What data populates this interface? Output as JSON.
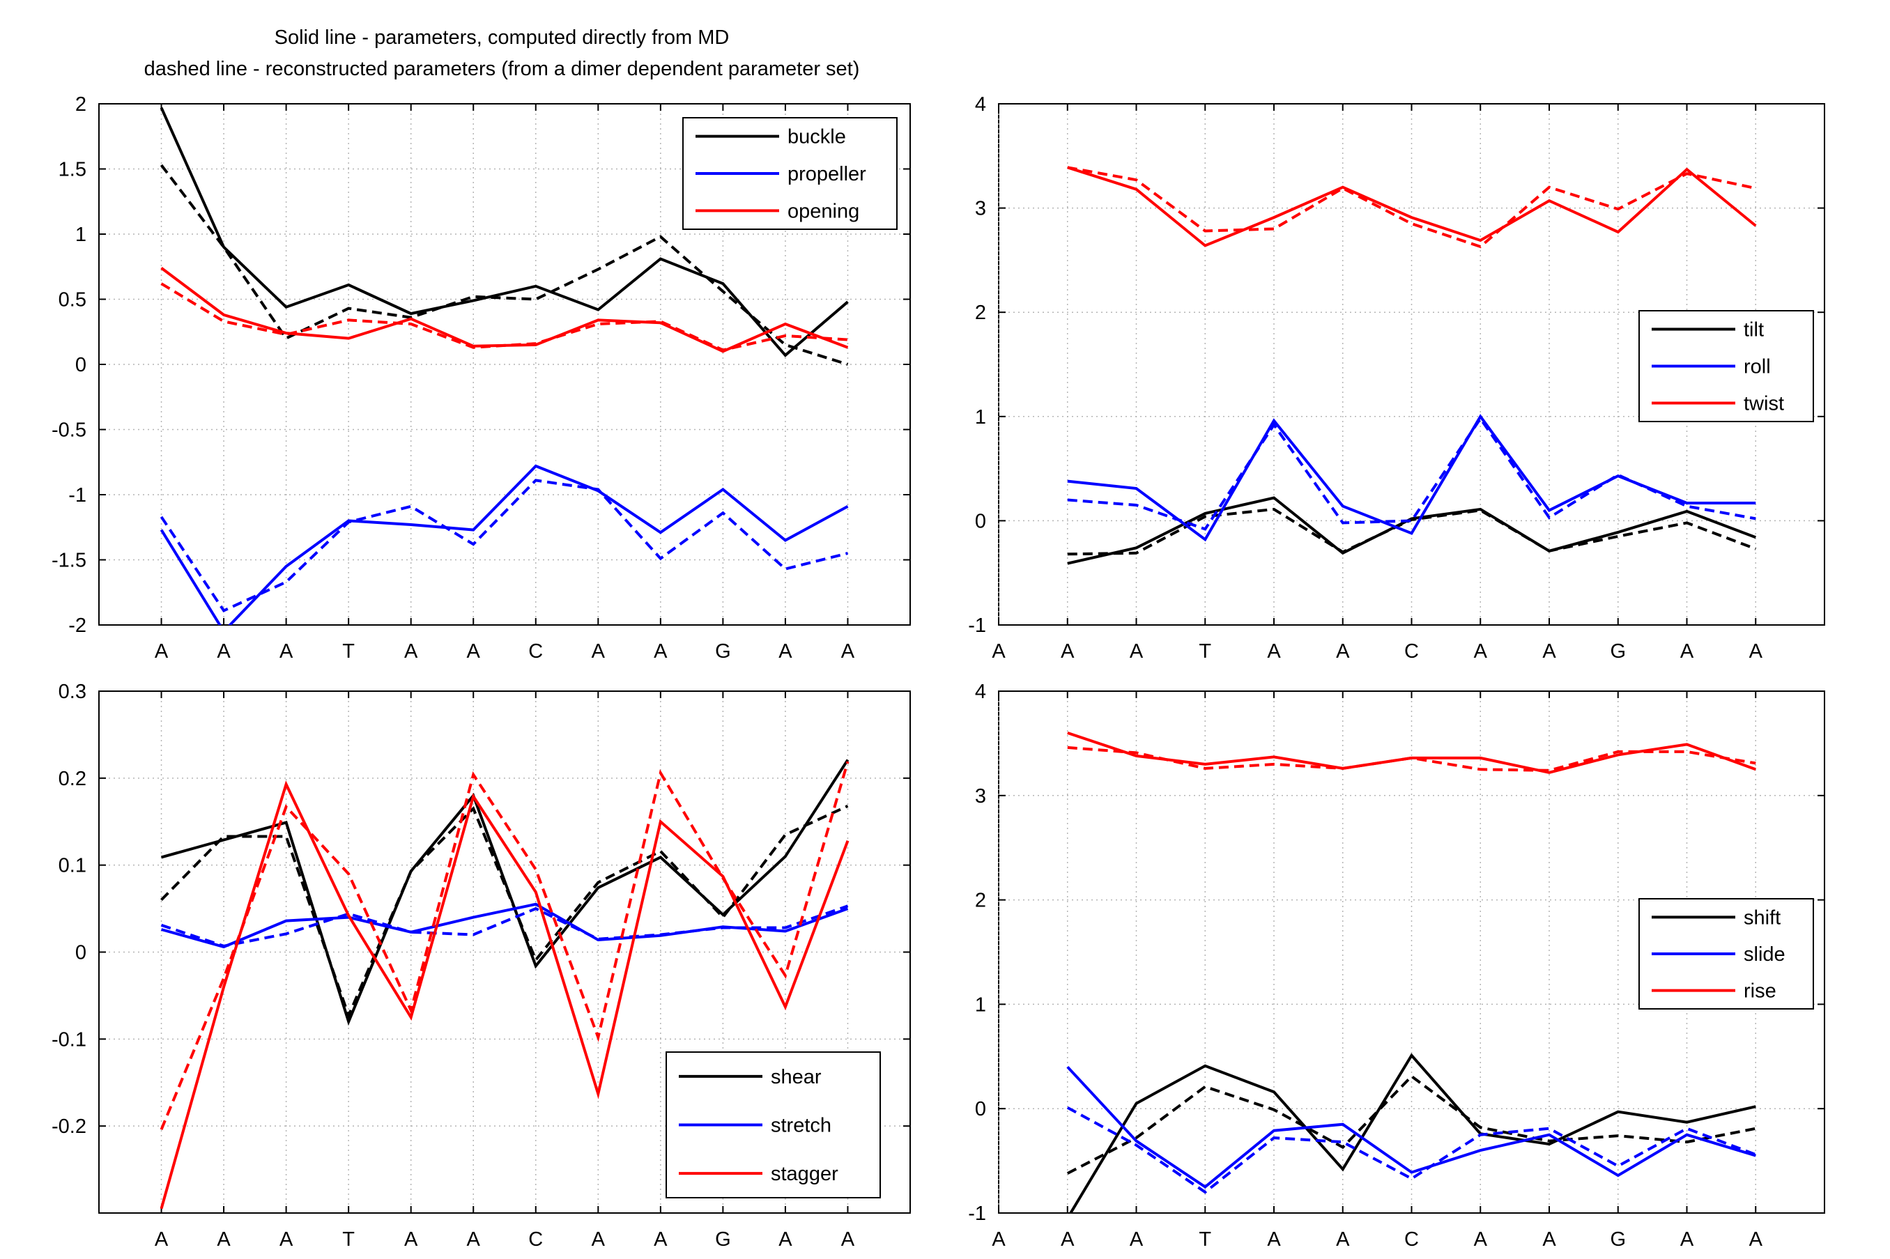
{
  "header": {
    "line1": "Solid line - parameters, computed directly from MD",
    "line2": "dashed line - reconstructed parameters (from a dimer dependent parameter set)"
  },
  "chart_data": [
    {
      "type": "line",
      "panel": "top-left",
      "categories": [
        "A",
        "A",
        "A",
        "T",
        "A",
        "A",
        "C",
        "A",
        "A",
        "G",
        "A",
        "A"
      ],
      "ylim": [
        -2,
        2
      ],
      "yticks": [
        -2,
        -1.5,
        -1,
        -0.5,
        0,
        0.5,
        1,
        1.5,
        2
      ],
      "ytick_labels": [
        "-2",
        "-1.5",
        "-1",
        "-0.5",
        "0",
        "0.5",
        "1",
        "1.5",
        "2"
      ],
      "grid": true,
      "legend_position": "top-right",
      "series": [
        {
          "name": "buckle",
          "color": "#000000",
          "solid": [
            1.97,
            0.9,
            0.44,
            0.61,
            0.39,
            0.49,
            0.6,
            0.42,
            0.81,
            0.62,
            0.07,
            0.48
          ],
          "dashed": [
            1.53,
            0.9,
            0.2,
            0.43,
            0.36,
            0.52,
            0.5,
            0.73,
            0.98,
            0.56,
            0.15,
            0.0
          ]
        },
        {
          "name": "propeller",
          "color": "#0000ff",
          "solid": [
            -1.27,
            -2.05,
            -1.55,
            -1.2,
            -1.23,
            -1.27,
            -0.78,
            -0.97,
            -1.29,
            -0.96,
            -1.35,
            -1.09
          ],
          "dashed": [
            -1.17,
            -1.89,
            -1.67,
            -1.21,
            -1.09,
            -1.38,
            -0.89,
            -0.96,
            -1.49,
            -1.14,
            -1.57,
            -1.45
          ]
        },
        {
          "name": "opening",
          "color": "#ff0000",
          "solid": [
            0.74,
            0.38,
            0.24,
            0.2,
            0.35,
            0.14,
            0.15,
            0.34,
            0.32,
            0.1,
            0.31,
            0.13
          ],
          "dashed": [
            0.62,
            0.33,
            0.23,
            0.34,
            0.31,
            0.13,
            0.16,
            0.31,
            0.33,
            0.11,
            0.22,
            0.19
          ]
        }
      ]
    },
    {
      "type": "line",
      "panel": "top-right",
      "categories": [
        "A",
        "A",
        "A",
        "T",
        "A",
        "A",
        "C",
        "A",
        "A",
        "G",
        "A",
        "A"
      ],
      "ylim": [
        -1,
        4
      ],
      "yticks": [
        -1,
        0,
        1,
        2,
        3,
        4
      ],
      "ytick_labels": [
        "-1",
        "0",
        "1",
        "2",
        "3",
        "4"
      ],
      "grid": true,
      "legend_position": "center-right",
      "series": [
        {
          "name": "tilt",
          "color": "#000000",
          "solid": [
            null,
            -0.41,
            -0.26,
            0.07,
            0.22,
            -0.31,
            0.02,
            0.11,
            -0.29,
            -0.11,
            0.09,
            -0.16
          ],
          "dashed": [
            null,
            -0.32,
            -0.31,
            0.04,
            0.11,
            -0.3,
            0.01,
            0.1,
            -0.29,
            -0.15,
            -0.02,
            -0.27
          ]
        },
        {
          "name": "roll",
          "color": "#0000ff",
          "solid": [
            null,
            0.38,
            0.31,
            -0.18,
            0.96,
            0.14,
            -0.12,
            1.0,
            0.1,
            0.43,
            0.17,
            0.17
          ],
          "dashed": [
            null,
            0.2,
            0.15,
            -0.08,
            0.92,
            -0.02,
            0.0,
            0.98,
            0.03,
            0.44,
            0.14,
            0.02
          ]
        },
        {
          "name": "twist",
          "color": "#ff0000",
          "solid": [
            null,
            3.39,
            3.18,
            2.64,
            2.91,
            3.2,
            2.91,
            2.69,
            3.07,
            2.77,
            3.37,
            2.83
          ],
          "dashed": [
            null,
            3.39,
            3.27,
            2.78,
            2.8,
            3.19,
            2.85,
            2.63,
            3.2,
            2.99,
            3.33,
            3.19
          ]
        }
      ]
    },
    {
      "type": "line",
      "panel": "bottom-left",
      "categories": [
        "A",
        "A",
        "A",
        "T",
        "A",
        "A",
        "C",
        "A",
        "A",
        "G",
        "A",
        "A"
      ],
      "ylim": [
        -0.3,
        0.3
      ],
      "yticks": [
        -0.2,
        -0.1,
        0,
        0.1,
        0.2,
        0.3
      ],
      "ytick_labels": [
        "-0.2",
        "-0.1",
        "0",
        "0.1",
        "0.2",
        "0.3"
      ],
      "grid": true,
      "legend_position": "bottom-right",
      "series": [
        {
          "name": "shear",
          "color": "#000000",
          "solid": [
            0.109,
            0.129,
            0.149,
            -0.08,
            0.093,
            0.18,
            -0.016,
            0.074,
            0.109,
            0.043,
            0.11,
            0.221
          ],
          "dashed": [
            0.06,
            0.133,
            0.133,
            -0.073,
            0.093,
            0.165,
            -0.009,
            0.08,
            0.116,
            0.04,
            0.135,
            0.168
          ]
        },
        {
          "name": "stretch",
          "color": "#0000ff",
          "solid": [
            0.026,
            0.006,
            0.036,
            0.04,
            0.023,
            0.04,
            0.055,
            0.014,
            0.019,
            0.029,
            0.024,
            0.05
          ],
          "dashed": [
            0.031,
            0.007,
            0.021,
            0.044,
            0.023,
            0.02,
            0.05,
            0.015,
            0.02,
            0.028,
            0.028,
            0.053
          ]
        },
        {
          "name": "stagger",
          "color": "#ff0000",
          "solid": [
            -0.295,
            -0.04,
            0.193,
            0.042,
            -0.075,
            0.179,
            0.069,
            -0.163,
            0.15,
            0.087,
            -0.063,
            0.128
          ],
          "dashed": [
            -0.204,
            -0.03,
            0.167,
            0.09,
            -0.067,
            0.204,
            0.095,
            -0.098,
            0.206,
            0.085,
            -0.027,
            0.219
          ]
        }
      ]
    },
    {
      "type": "line",
      "panel": "bottom-right",
      "categories": [
        "A",
        "A",
        "A",
        "T",
        "A",
        "A",
        "C",
        "A",
        "A",
        "G",
        "A",
        "A"
      ],
      "ylim": [
        -1,
        4
      ],
      "yticks": [
        -1,
        0,
        1,
        2,
        3,
        4
      ],
      "ytick_labels": [
        "-1",
        "0",
        "1",
        "2",
        "3",
        "4"
      ],
      "grid": true,
      "legend_position": "center-right",
      "series": [
        {
          "name": "shift",
          "color": "#000000",
          "solid": [
            null,
            -1.05,
            0.05,
            0.41,
            0.16,
            -0.58,
            0.51,
            -0.24,
            -0.34,
            -0.03,
            -0.13,
            0.02
          ],
          "dashed": [
            null,
            -0.62,
            -0.28,
            0.21,
            -0.01,
            -0.37,
            0.31,
            -0.18,
            -0.31,
            -0.26,
            -0.32,
            -0.19
          ]
        },
        {
          "name": "slide",
          "color": "#0000ff",
          "solid": [
            null,
            0.4,
            -0.31,
            -0.75,
            -0.21,
            -0.15,
            -0.61,
            -0.4,
            -0.25,
            -0.64,
            -0.25,
            -0.45
          ],
          "dashed": [
            null,
            0.01,
            -0.35,
            -0.8,
            -0.28,
            -0.32,
            -0.67,
            -0.25,
            -0.19,
            -0.55,
            -0.19,
            -0.44
          ]
        },
        {
          "name": "rise",
          "color": "#ff0000",
          "solid": [
            null,
            3.6,
            3.38,
            3.3,
            3.37,
            3.26,
            3.36,
            3.36,
            3.22,
            3.39,
            3.49,
            3.25
          ],
          "dashed": [
            null,
            3.46,
            3.41,
            3.26,
            3.3,
            3.26,
            3.36,
            3.25,
            3.24,
            3.42,
            3.42,
            3.31
          ]
        }
      ]
    }
  ]
}
